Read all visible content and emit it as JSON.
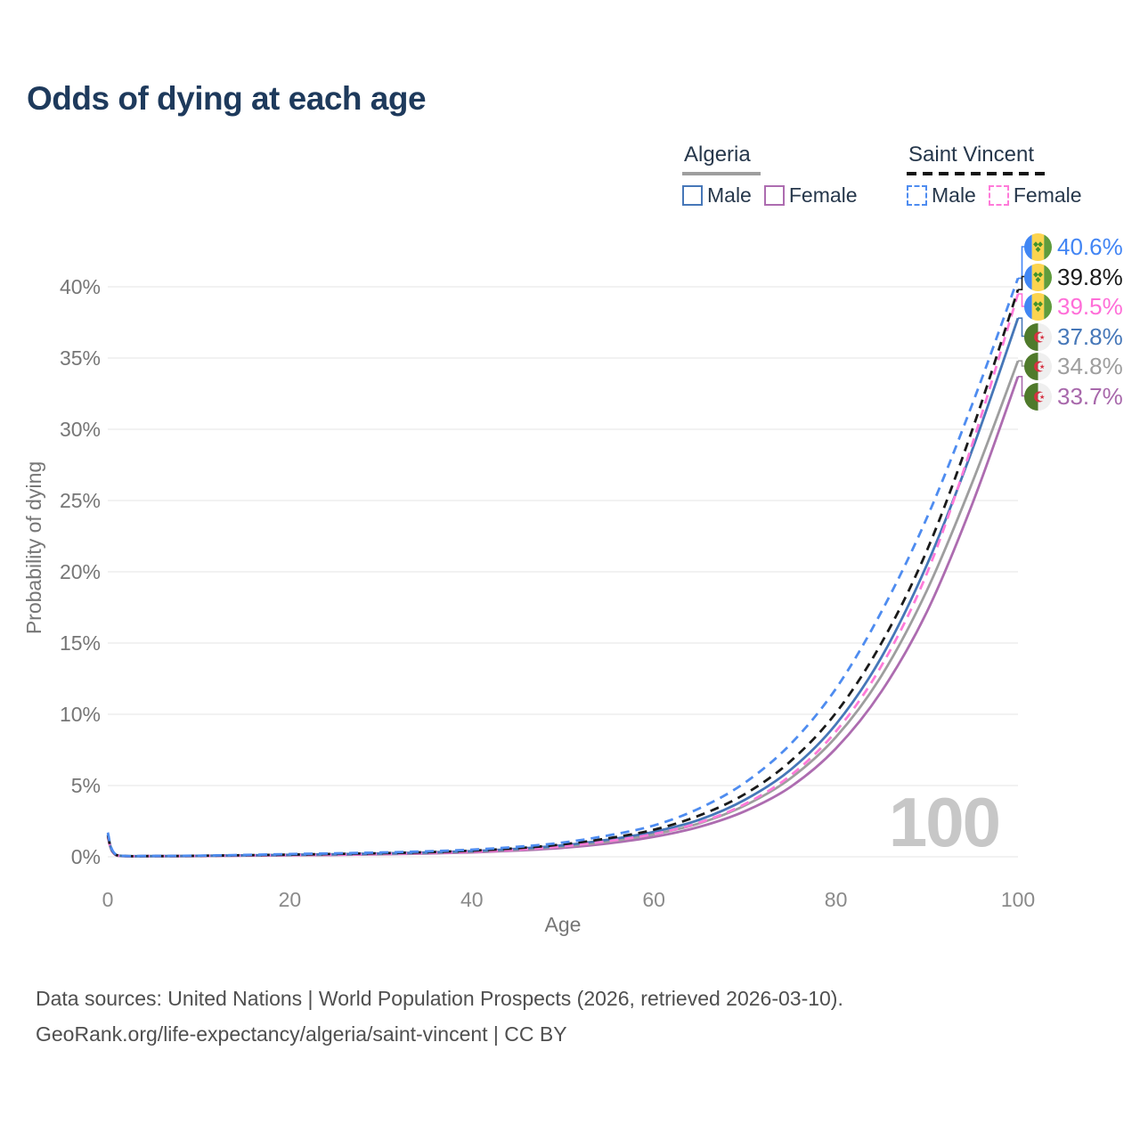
{
  "title": "Odds of dying at each age",
  "legend": {
    "algeria": {
      "label": "Algeria",
      "male_label": "Male",
      "female_label": "Female",
      "male_color": "#4677b8",
      "female_color": "#ad6cb0",
      "underline_color": "#9e9e9e"
    },
    "saint_vincent": {
      "label": "Saint Vincent",
      "male_label": "Male",
      "female_label": "Female",
      "male_color": "#4e8cf0",
      "female_color": "#ff7ad9",
      "underline_color": "#151515"
    }
  },
  "chart_data": {
    "type": "line",
    "title": "Odds of dying at each age",
    "xlabel": "Age",
    "ylabel": "Probability of dying",
    "xlim": [
      0,
      100
    ],
    "ylim": [
      0,
      43
    ],
    "xticks": [
      0,
      20,
      40,
      60,
      80,
      100
    ],
    "yticks": [
      0,
      5,
      10,
      15,
      20,
      25,
      30,
      35,
      40
    ],
    "ytick_suffix": "%",
    "grid": true,
    "legend_position": "top-right",
    "x": [
      0,
      1,
      5,
      10,
      15,
      20,
      25,
      30,
      35,
      40,
      45,
      50,
      55,
      60,
      65,
      70,
      75,
      80,
      85,
      90,
      95,
      100
    ],
    "series": [
      {
        "name": "Algeria Female",
        "country": "Algeria",
        "sex": "Female",
        "style": "solid",
        "color": "#ad6cb0",
        "values": [
          1.4,
          0.08,
          0.04,
          0.05,
          0.08,
          0.1,
          0.13,
          0.17,
          0.23,
          0.31,
          0.44,
          0.63,
          0.94,
          1.4,
          2.1,
          3.2,
          4.9,
          7.6,
          11.6,
          17.2,
          24.8,
          33.7
        ]
      },
      {
        "name": "Algeria Both sexes",
        "country": "Algeria",
        "sex": "Both",
        "style": "solid",
        "color": "#9e9e9e",
        "values": [
          1.5,
          0.09,
          0.04,
          0.06,
          0.09,
          0.12,
          0.16,
          0.2,
          0.27,
          0.36,
          0.5,
          0.72,
          1.07,
          1.58,
          2.35,
          3.6,
          5.5,
          8.4,
          12.7,
          18.7,
          26.3,
          34.8
        ]
      },
      {
        "name": "Algeria Male",
        "country": "Algeria",
        "sex": "Male",
        "style": "solid",
        "color": "#4677b8",
        "values": [
          1.6,
          0.1,
          0.05,
          0.07,
          0.1,
          0.14,
          0.18,
          0.23,
          0.3,
          0.4,
          0.56,
          0.8,
          1.2,
          1.75,
          2.6,
          4.0,
          6.1,
          9.3,
          14.0,
          20.5,
          28.6,
          37.8
        ]
      },
      {
        "name": "Saint Vincent Female",
        "country": "Saint Vincent",
        "sex": "Female",
        "style": "dashed",
        "color": "#ff7ad9",
        "values": [
          1.4,
          0.1,
          0.05,
          0.06,
          0.09,
          0.12,
          0.15,
          0.2,
          0.27,
          0.36,
          0.5,
          0.73,
          1.1,
          1.6,
          2.4,
          3.7,
          5.7,
          8.8,
          13.4,
          19.9,
          29.0,
          39.5
        ]
      },
      {
        "name": "Saint Vincent Both sexes",
        "country": "Saint Vincent",
        "sex": "Both",
        "style": "dashed",
        "color": "#1a1a1a",
        "values": [
          1.5,
          0.11,
          0.05,
          0.07,
          0.11,
          0.15,
          0.2,
          0.25,
          0.32,
          0.43,
          0.6,
          0.87,
          1.3,
          1.9,
          2.9,
          4.4,
          6.7,
          10.1,
          15.0,
          21.5,
          30.0,
          39.8
        ]
      },
      {
        "name": "Saint Vincent Male",
        "country": "Saint Vincent",
        "sex": "Male",
        "style": "dashed",
        "color": "#4e8cf0",
        "values": [
          1.7,
          0.12,
          0.06,
          0.08,
          0.13,
          0.19,
          0.24,
          0.3,
          0.38,
          0.5,
          0.7,
          1.0,
          1.5,
          2.2,
          3.4,
          5.2,
          7.9,
          11.8,
          17.2,
          23.8,
          31.8,
          40.6
        ]
      }
    ]
  },
  "end_labels": [
    {
      "flag": "saint-vincent",
      "value": "40.6%",
      "color": "#4285f4",
      "line_end": 40.6
    },
    {
      "flag": "saint-vincent",
      "value": "39.8%",
      "color": "#1a1a1a",
      "line_end": 39.8
    },
    {
      "flag": "saint-vincent",
      "value": "39.5%",
      "color": "#ff6ed8",
      "line_end": 39.5
    },
    {
      "flag": "algeria",
      "value": "37.8%",
      "color": "#4677b8",
      "line_end": 37.8
    },
    {
      "flag": "algeria",
      "value": "34.8%",
      "color": "#9e9e9e",
      "line_end": 34.8
    },
    {
      "flag": "algeria",
      "value": "33.7%",
      "color": "#a868ab",
      "line_end": 33.7
    }
  ],
  "watermark": "100",
  "footer": {
    "line1": "Data sources: United Nations | World Population Prospects (2026, retrieved 2026-03-10).",
    "line2": "GeoRank.org/life-expectancy/algeria/saint-vincent | CC BY"
  }
}
